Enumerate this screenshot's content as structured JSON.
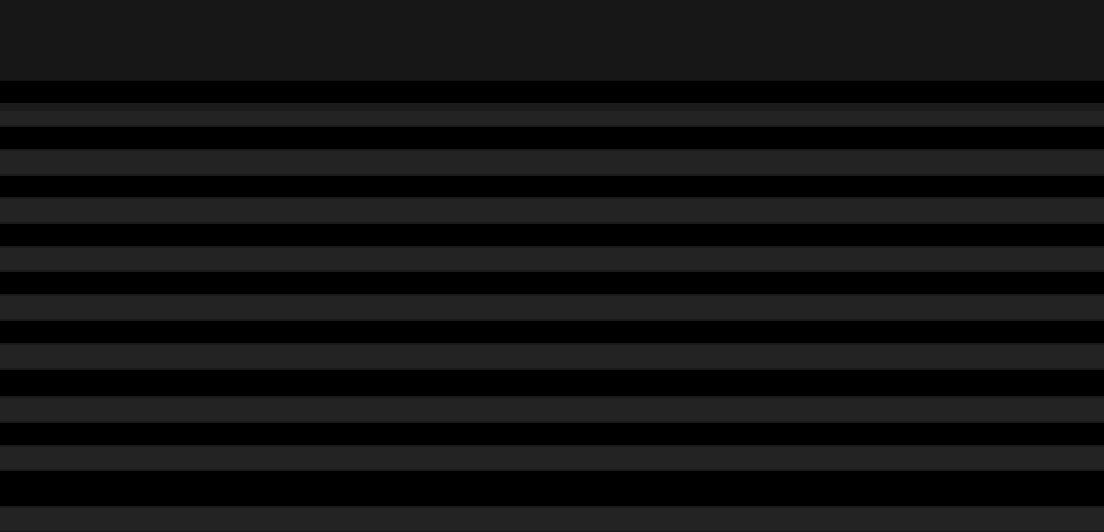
{
  "colors": {
    "header": "#171717",
    "row_stripe": "#232323",
    "row_base": "#000000"
  }
}
